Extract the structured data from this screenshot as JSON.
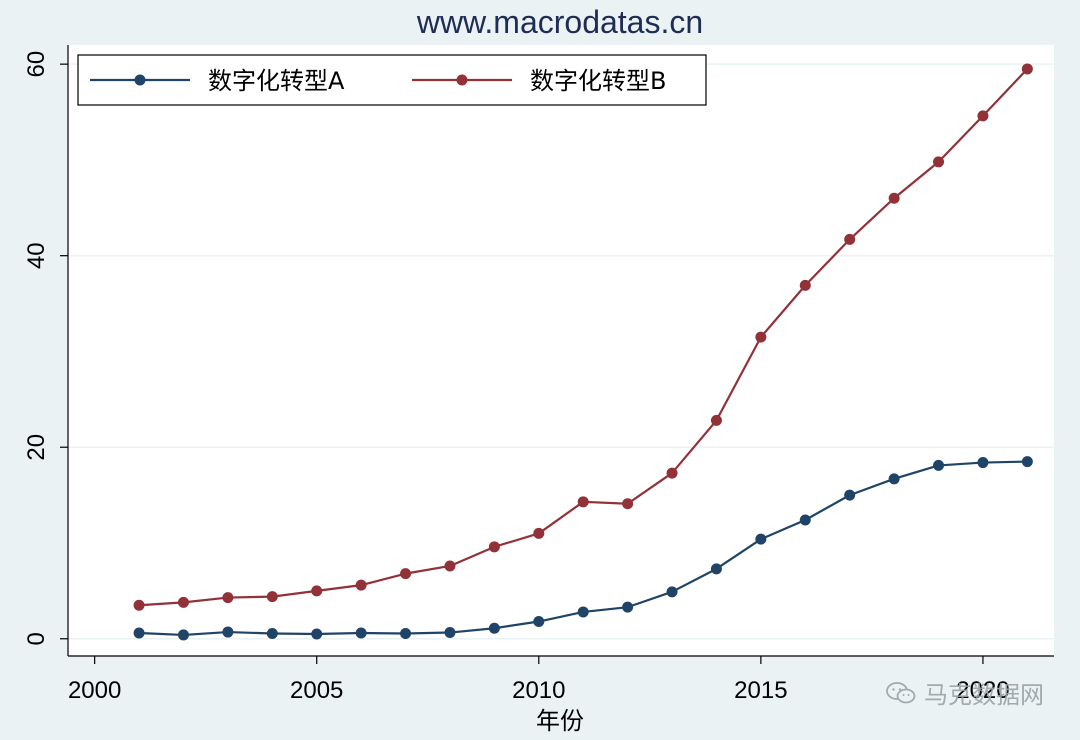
{
  "chart_data": {
    "type": "line",
    "title": "www.macrodatas.cn",
    "xlabel": "年份",
    "ylabel": "",
    "xlim": [
      1999.4,
      2021.6
    ],
    "ylim": [
      -1.8,
      62
    ],
    "x_ticks": [
      2000,
      2005,
      2010,
      2015,
      2020
    ],
    "x_tick_labels": [
      "2000",
      "2005",
      "2010",
      "2015",
      "2020"
    ],
    "y_ticks": [
      0,
      20,
      40,
      60
    ],
    "y_tick_labels": [
      "0",
      "20",
      "40",
      "60"
    ],
    "grid": true,
    "legend_position": "top-left",
    "x": [
      2001,
      2002,
      2003,
      2004,
      2005,
      2006,
      2007,
      2008,
      2009,
      2010,
      2011,
      2012,
      2013,
      2014,
      2015,
      2016,
      2017,
      2018,
      2019,
      2020,
      2021
    ],
    "series": [
      {
        "name": "数字化转型A",
        "color": "#1f4468",
        "values": [
          0.6,
          0.4,
          0.7,
          0.55,
          0.5,
          0.6,
          0.55,
          0.65,
          1.1,
          1.8,
          2.8,
          3.3,
          4.9,
          7.3,
          10.4,
          12.4,
          15.0,
          16.7,
          18.1,
          18.4,
          18.5
        ]
      },
      {
        "name": "数字化转型B",
        "color": "#923238",
        "values": [
          3.5,
          3.8,
          4.3,
          4.4,
          5.0,
          5.6,
          6.8,
          7.6,
          9.6,
          11.0,
          14.3,
          14.1,
          17.3,
          22.8,
          31.5,
          36.9,
          41.7,
          46.0,
          49.8,
          54.6,
          59.5
        ]
      }
    ]
  },
  "watermark": {
    "text": "马克数据网",
    "icon": "wechat-icon"
  },
  "colors": {
    "background": "#eaf2f3",
    "plot_background": "#ffffff",
    "grid": "#eaf2f3",
    "axis": "#000000",
    "title": "#1f2c55"
  }
}
